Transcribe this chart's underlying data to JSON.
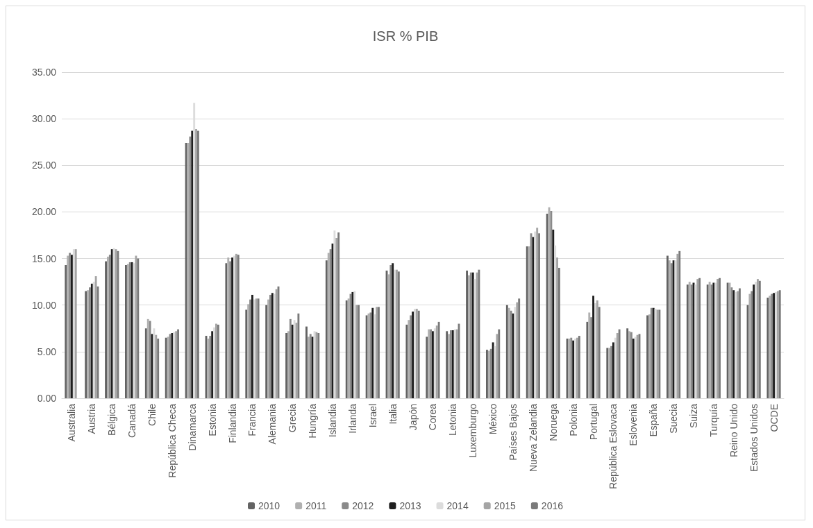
{
  "chart_data": {
    "type": "bar",
    "title": "ISR % PIB",
    "categories": [
      "Australia",
      "Austria",
      "Bélgica",
      "Canadá",
      "Chile",
      "República Checa",
      "Dinamarca",
      "Estonia",
      "Finlandia",
      "Francia",
      "Alemania",
      "Grecia",
      "Hungría",
      "Islandia",
      "Irlanda",
      "Israel",
      "Italia",
      "Japón",
      "Corea",
      "Letonia",
      "Luxemburgo",
      "México",
      "Países Bajos",
      "Nueva Zelandia",
      "Noruega",
      "Polonia",
      "Portugal",
      "República Eslovaca",
      "Eslovenia",
      "España",
      "Suecia",
      "Suiza",
      "Turquía",
      "Reino Unido",
      "Estados Unidos",
      "OCDE"
    ],
    "series": [
      {
        "name": "2010",
        "color": "#636363",
        "values": [
          14.3,
          11.5,
          14.7,
          14.3,
          7.5,
          6.5,
          27.4,
          6.7,
          14.5,
          9.5,
          10.0,
          7.0,
          7.7,
          14.8,
          10.5,
          8.9,
          13.7,
          7.9,
          6.6,
          7.2,
          13.7,
          5.2,
          10.0,
          16.3,
          19.8,
          6.4,
          8.2,
          5.4,
          7.5,
          8.9,
          15.3,
          12.2,
          12.2,
          12.4,
          10.0,
          10.8
        ]
      },
      {
        "name": "2011",
        "color": "#b0b0b0",
        "values": [
          15.3,
          11.6,
          15.2,
          14.4,
          8.5,
          6.6,
          27.4,
          6.4,
          15.1,
          10.1,
          10.6,
          7.2,
          6.6,
          15.6,
          10.7,
          9.1,
          13.3,
          8.4,
          7.4,
          6.9,
          13.2,
          5.1,
          9.7,
          16.3,
          20.5,
          6.4,
          9.2,
          5.4,
          7.2,
          9.0,
          14.8,
          12.5,
          12.5,
          12.4,
          11.2,
          11.0
        ]
      },
      {
        "name": "2012",
        "color": "#8a8a8a",
        "values": [
          15.6,
          11.9,
          15.4,
          14.6,
          8.3,
          6.9,
          28.1,
          6.7,
          14.7,
          10.6,
          11.1,
          8.5,
          6.9,
          16.0,
          11.2,
          9.2,
          14.3,
          8.9,
          7.4,
          7.3,
          13.5,
          5.3,
          9.4,
          17.7,
          20.1,
          6.5,
          8.7,
          5.6,
          7.1,
          9.7,
          14.5,
          12.2,
          12.2,
          11.9,
          11.5,
          11.2
        ]
      },
      {
        "name": "2013",
        "color": "#1f1f1f",
        "values": [
          15.4,
          12.3,
          16.0,
          14.6,
          6.9,
          7.0,
          28.7,
          7.2,
          15.1,
          11.1,
          11.3,
          7.9,
          6.6,
          16.6,
          11.4,
          9.7,
          14.5,
          9.3,
          7.2,
          7.3,
          13.5,
          6.0,
          9.1,
          17.3,
          18.1,
          6.2,
          11.0,
          6.0,
          6.4,
          9.7,
          14.8,
          12.4,
          12.4,
          11.6,
          12.2,
          11.3
        ]
      },
      {
        "name": "2014",
        "color": "#dcdcdc",
        "values": [
          16.0,
          12.5,
          16.1,
          14.5,
          7.5,
          7.1,
          31.7,
          7.6,
          15.3,
          10.6,
          11.2,
          8.4,
          7.2,
          18.0,
          11.5,
          9.0,
          13.8,
          9.6,
          7.5,
          7.4,
          12.8,
          5.6,
          9.8,
          17.9,
          16.4,
          6.4,
          10.2,
          6.5,
          6.6,
          9.6,
          14.8,
          12.2,
          12.4,
          11.4,
          12.5,
          11.4
        ]
      },
      {
        "name": "2015",
        "color": "#a5a5a5",
        "values": [
          16.0,
          13.1,
          16.0,
          15.3,
          6.8,
          7.2,
          28.9,
          8.0,
          15.5,
          10.7,
          11.7,
          8.1,
          7.1,
          17.2,
          10.0,
          9.8,
          13.8,
          9.6,
          7.8,
          7.4,
          13.5,
          6.9,
          10.3,
          18.3,
          15.1,
          6.5,
          10.5,
          7.0,
          6.8,
          9.5,
          15.5,
          12.8,
          12.8,
          11.5,
          12.8,
          11.5
        ]
      },
      {
        "name": "2016",
        "color": "#7a7a7a",
        "values": [
          null,
          12.0,
          15.8,
          15.0,
          6.4,
          7.4,
          28.7,
          7.9,
          15.4,
          10.7,
          12.0,
          9.1,
          7.0,
          17.8,
          10.0,
          9.8,
          13.6,
          9.4,
          8.2,
          8.0,
          13.8,
          7.4,
          10.7,
          17.7,
          14.0,
          6.7,
          9.8,
          7.4,
          6.9,
          9.5,
          15.8,
          12.9,
          12.9,
          11.8,
          12.6,
          11.6
        ]
      }
    ],
    "ylim": [
      0,
      35
    ],
    "yticks": [
      {
        "value": 0,
        "label": "0.00"
      },
      {
        "value": 5,
        "label": "5.00"
      },
      {
        "value": 10,
        "label": "10.00"
      },
      {
        "value": 15,
        "label": "15.00"
      },
      {
        "value": 20,
        "label": "20.00"
      },
      {
        "value": 25,
        "label": "25.00"
      },
      {
        "value": 30,
        "label": "30.00"
      },
      {
        "value": 35,
        "label": "35.00"
      }
    ],
    "grid": "y",
    "legend": "bottom"
  }
}
